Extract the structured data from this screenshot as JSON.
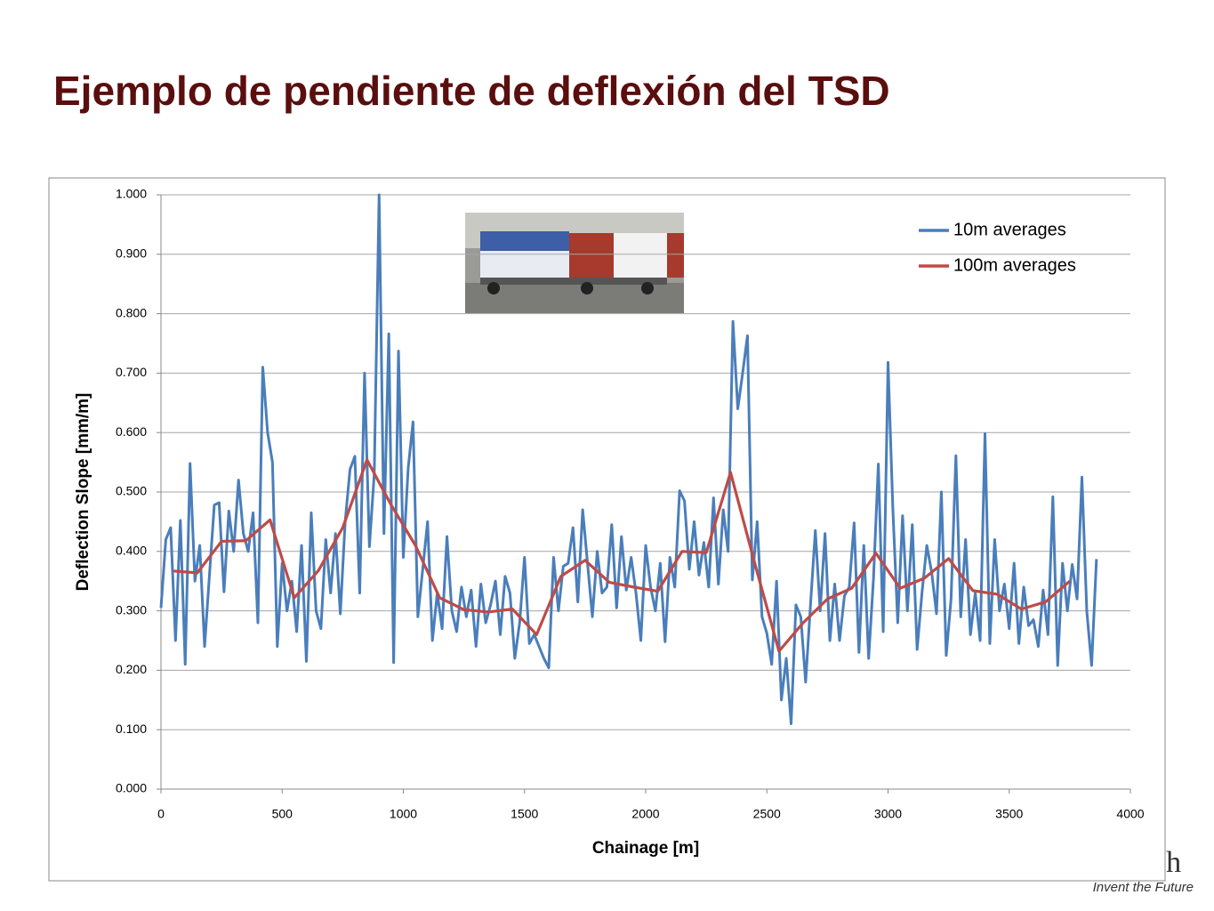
{
  "slide": {
    "title": "Ejemplo de pendiente de deflexión del TSD",
    "logo": "ch",
    "tagline": "Invent the Future"
  },
  "chart_data": {
    "type": "line",
    "xlabel": "Chainage [m]",
    "ylabel": "Deflection Slope [mm/m]",
    "xlim": [
      0,
      4000
    ],
    "xticks": [
      0,
      500,
      1000,
      1500,
      2000,
      2500,
      3000,
      3500,
      4000
    ],
    "ylim": [
      0,
      1
    ],
    "yticks": [
      {
        "value": 0,
        "label": "0.000"
      },
      {
        "value": 0.1,
        "label": "0.100"
      },
      {
        "value": 0.2,
        "label": "0.200"
      },
      {
        "value": 0.3,
        "label": "0.300"
      },
      {
        "value": 0.4,
        "label": "0.400"
      },
      {
        "value": 0.5,
        "label": "0.500"
      },
      {
        "value": 0.6,
        "label": "0.600"
      },
      {
        "value": 0.7,
        "label": "0.700"
      },
      {
        "value": 0.8,
        "label": "0.800"
      },
      {
        "value": 0.9,
        "label": "0.900"
      },
      {
        "value": 1,
        "label": "1.000"
      }
    ],
    "grid": true,
    "legend": "upper right",
    "series": [
      {
        "name": "10m averages",
        "color": "#4a7ebb",
        "x": [
          0,
          20,
          40,
          60,
          80,
          100,
          120,
          140,
          160,
          180,
          200,
          220,
          240,
          260,
          280,
          300,
          320,
          340,
          360,
          380,
          400,
          420,
          440,
          460,
          480,
          500,
          520,
          540,
          560,
          580,
          600,
          620,
          640,
          660,
          680,
          700,
          720,
          740,
          760,
          780,
          800,
          820,
          840,
          860,
          880,
          900,
          920,
          940,
          960,
          980,
          1000,
          1020,
          1040,
          1060,
          1080,
          1100,
          1120,
          1140,
          1160,
          1180,
          1200,
          1220,
          1240,
          1260,
          1280,
          1300,
          1320,
          1340,
          1360,
          1380,
          1400,
          1420,
          1440,
          1460,
          1480,
          1500,
          1520,
          1540,
          1560,
          1580,
          1600,
          1620,
          1640,
          1660,
          1680,
          1700,
          1720,
          1740,
          1760,
          1780,
          1800,
          1820,
          1840,
          1860,
          1880,
          1900,
          1920,
          1940,
          1960,
          1980,
          2000,
          2020,
          2040,
          2060,
          2080,
          2100,
          2120,
          2140,
          2160,
          2180,
          2200,
          2220,
          2240,
          2260,
          2280,
          2300,
          2320,
          2340,
          2360,
          2380,
          2400,
          2420,
          2440,
          2460,
          2480,
          2500,
          2520,
          2540,
          2560,
          2580,
          2600,
          2620,
          2640,
          2660,
          2680,
          2700,
          2720,
          2740,
          2760,
          2780,
          2800,
          2820,
          2840,
          2860,
          2880,
          2900,
          2920,
          2940,
          2960,
          2980,
          3000,
          3020,
          3040,
          3060,
          3080,
          3100,
          3120,
          3140,
          3160,
          3180,
          3200,
          3220,
          3240,
          3260,
          3280,
          3300,
          3320,
          3340,
          3360,
          3380,
          3400,
          3420,
          3440,
          3460,
          3480,
          3500,
          3520,
          3540,
          3560,
          3580,
          3600,
          3620,
          3640,
          3660,
          3680,
          3700,
          3720,
          3740,
          3760,
          3780,
          3800,
          3820,
          3840,
          3860
        ],
        "values": [
          0.305,
          0.42,
          0.44,
          0.25,
          0.452,
          0.21,
          0.548,
          0.35,
          0.41,
          0.24,
          0.36,
          0.478,
          0.482,
          0.332,
          0.468,
          0.4,
          0.52,
          0.43,
          0.4,
          0.465,
          0.28,
          0.71,
          0.6,
          0.55,
          0.24,
          0.38,
          0.3,
          0.35,
          0.265,
          0.41,
          0.215,
          0.465,
          0.3,
          0.27,
          0.42,
          0.33,
          0.43,
          0.295,
          0.45,
          0.538,
          0.56,
          0.33,
          0.7,
          0.408,
          0.53,
          1.0,
          0.43,
          0.766,
          0.213,
          0.737,
          0.39,
          0.54,
          0.618,
          0.29,
          0.37,
          0.45,
          0.25,
          0.33,
          0.27,
          0.425,
          0.3,
          0.265,
          0.34,
          0.29,
          0.335,
          0.24,
          0.345,
          0.28,
          0.31,
          0.35,
          0.26,
          0.358,
          0.33,
          0.22,
          0.28,
          0.39,
          0.245,
          0.26,
          0.24,
          0.22,
          0.204,
          0.39,
          0.3,
          0.375,
          0.38,
          0.44,
          0.315,
          0.47,
          0.38,
          0.29,
          0.4,
          0.33,
          0.34,
          0.445,
          0.305,
          0.425,
          0.335,
          0.39,
          0.33,
          0.25,
          0.41,
          0.34,
          0.3,
          0.38,
          0.248,
          0.39,
          0.34,
          0.502,
          0.485,
          0.37,
          0.45,
          0.36,
          0.415,
          0.34,
          0.49,
          0.345,
          0.47,
          0.4,
          0.787,
          0.64,
          0.7,
          0.763,
          0.352,
          0.45,
          0.29,
          0.262,
          0.21,
          0.35,
          0.15,
          0.22,
          0.11,
          0.31,
          0.29,
          0.18,
          0.31,
          0.435,
          0.3,
          0.43,
          0.25,
          0.345,
          0.25,
          0.325,
          0.34,
          0.448,
          0.23,
          0.41,
          0.22,
          0.355,
          0.547,
          0.265,
          0.718,
          0.47,
          0.28,
          0.46,
          0.3,
          0.445,
          0.235,
          0.33,
          0.41,
          0.365,
          0.295,
          0.5,
          0.225,
          0.32,
          0.561,
          0.29,
          0.42,
          0.26,
          0.33,
          0.25,
          0.598,
          0.245,
          0.42,
          0.3,
          0.345,
          0.27,
          0.38,
          0.245,
          0.34,
          0.275,
          0.285,
          0.24,
          0.335,
          0.26,
          0.492,
          0.208,
          0.38,
          0.3,
          0.378,
          0.32,
          0.525,
          0.3,
          0.208,
          0.387
        ]
      },
      {
        "name": "100m averages",
        "color": "#be4b48",
        "x": [
          50,
          150,
          250,
          350,
          450,
          550,
          650,
          750,
          850,
          950,
          1050,
          1150,
          1250,
          1350,
          1450,
          1550,
          1650,
          1750,
          1850,
          1950,
          2050,
          2150,
          2250,
          2350,
          2450,
          2550,
          2650,
          2750,
          2850,
          2950,
          3050,
          3150,
          3250,
          3350,
          3450,
          3550,
          3650,
          3750
        ],
        "values": [
          0.367,
          0.364,
          0.417,
          0.418,
          0.453,
          0.322,
          0.368,
          0.44,
          0.554,
          0.478,
          0.41,
          0.322,
          0.302,
          0.298,
          0.303,
          0.26,
          0.358,
          0.385,
          0.348,
          0.34,
          0.333,
          0.4,
          0.398,
          0.533,
          0.38,
          0.232,
          0.28,
          0.32,
          0.338,
          0.397,
          0.338,
          0.355,
          0.388,
          0.334,
          0.328,
          0.303,
          0.315,
          0.35
        ]
      }
    ]
  }
}
